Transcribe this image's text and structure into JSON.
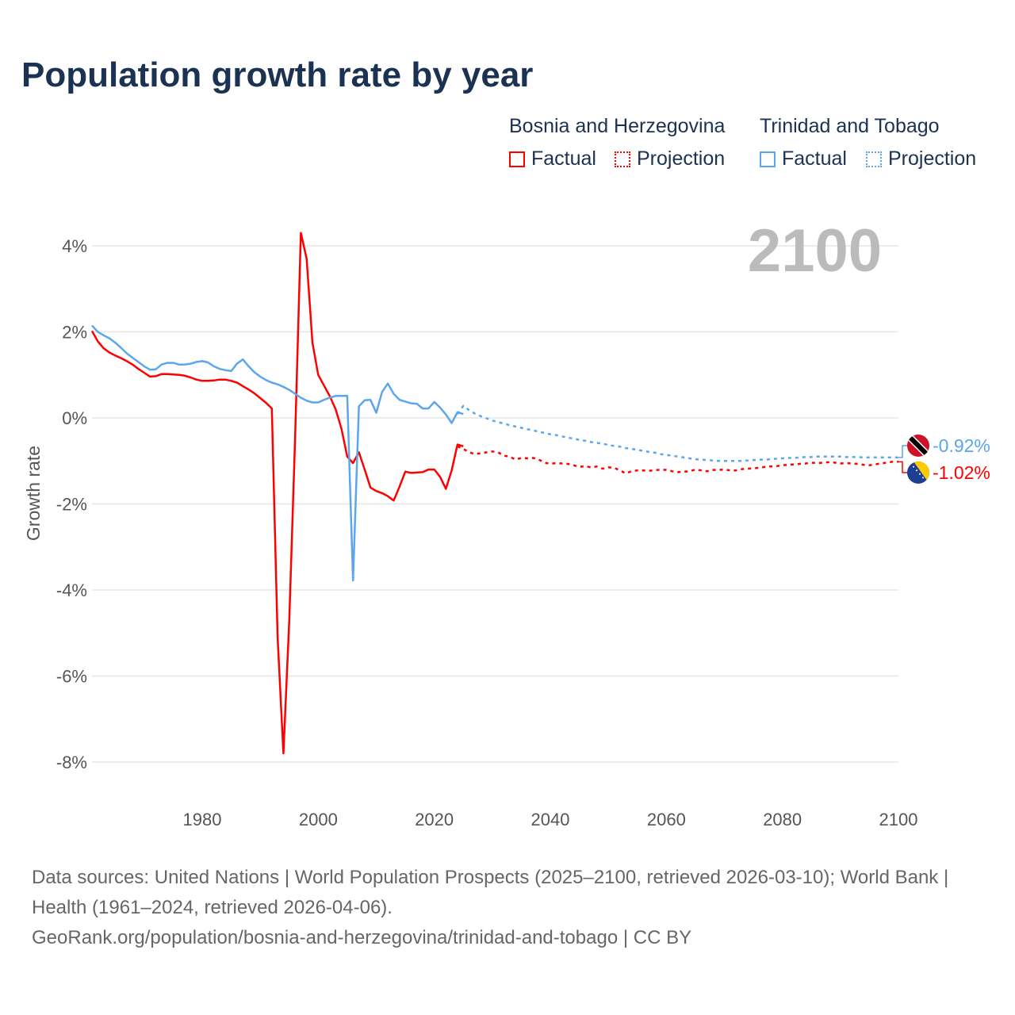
{
  "chart_data": {
    "type": "line",
    "title": "Population growth rate by year",
    "ylabel": "Growth rate",
    "xlim": [
      1961,
      2100
    ],
    "ylim": [
      -9,
      4.4
    ],
    "yticks": [
      4,
      2,
      0,
      -2,
      -4,
      -6,
      -8
    ],
    "ytick_labels": [
      "4%",
      "2%",
      "0%",
      "-2%",
      "-4%",
      "-6%",
      "-8%"
    ],
    "xticks": [
      1980,
      2000,
      2020,
      2040,
      2060,
      2080,
      2100
    ],
    "year_label": "2100",
    "legend": {
      "groups": [
        {
          "name": "Bosnia and Herzegovina",
          "items": [
            "Factual",
            "Projection"
          ]
        },
        {
          "name": "Trinidad and Tobago",
          "items": [
            "Factual",
            "Projection"
          ]
        }
      ],
      "position": "top-right"
    },
    "series": [
      {
        "name": "Bosnia and Herzegovina",
        "color": "#ff0000",
        "end_label": "-1.02%",
        "flag": "bosnia-flag",
        "factual": {
          "x_start": 1961,
          "values": [
            2.02,
            1.78,
            1.62,
            1.52,
            1.45,
            1.39,
            1.32,
            1.24,
            1.14,
            1.05,
            0.96,
            0.97,
            1.02,
            1.02,
            1.01,
            1.0,
            0.98,
            0.94,
            0.89,
            0.86,
            0.86,
            0.87,
            0.89,
            0.89,
            0.86,
            0.82,
            0.74,
            0.66,
            0.57,
            0.46,
            0.35,
            0.22,
            -5.1,
            -7.8,
            -4.7,
            -0.5,
            4.3,
            3.7,
            1.75,
            1.0,
            0.75,
            0.5,
            0.2,
            -0.25,
            -0.9,
            -1.05,
            -0.8,
            -1.2,
            -1.62,
            -1.7,
            -1.75,
            -1.82,
            -1.92,
            -1.6,
            -1.25,
            -1.28,
            -1.27,
            -1.26,
            -1.2,
            -1.2,
            -1.37,
            -1.65,
            -1.22,
            -0.62,
            -0.66
          ]
        },
        "projection": {
          "x_start": 2024,
          "values": [
            -0.66,
            -0.72,
            -0.8,
            -0.84,
            -0.82,
            -0.8,
            -0.78,
            -0.8,
            -0.88,
            -0.9,
            -0.97,
            -0.93,
            -0.94,
            -0.93,
            -0.97,
            -1.04,
            -1.07,
            -1.05,
            -1.06,
            -1.07,
            -1.1,
            -1.14,
            -1.12,
            -1.15,
            -1.13,
            -1.18,
            -1.15,
            -1.16,
            -1.22,
            -1.29,
            -1.24,
            -1.22,
            -1.22,
            -1.23,
            -1.22,
            -1.2,
            -1.21,
            -1.24,
            -1.26,
            -1.25,
            -1.24,
            -1.2,
            -1.22,
            -1.24,
            -1.21,
            -1.21,
            -1.2,
            -1.22,
            -1.22,
            -1.19,
            -1.18,
            -1.17,
            -1.16,
            -1.14,
            -1.13,
            -1.12,
            -1.1,
            -1.09,
            -1.08,
            -1.07,
            -1.06,
            -1.04,
            -1.05,
            -1.04,
            -1.03,
            -1.04,
            -1.06,
            -1.05,
            -1.06,
            -1.07,
            -1.09,
            -1.1,
            -1.08,
            -1.06,
            -1.04,
            -1.02,
            -1.02
          ]
        }
      },
      {
        "name": "Trinidad and Tobago",
        "color": "#5ba6ec",
        "end_label": "-0.92%",
        "flag": "trinidad-flag",
        "factual": {
          "x_start": 1961,
          "values": [
            2.15,
            2.0,
            1.92,
            1.85,
            1.75,
            1.63,
            1.5,
            1.4,
            1.3,
            1.2,
            1.12,
            1.13,
            1.24,
            1.28,
            1.28,
            1.24,
            1.24,
            1.26,
            1.3,
            1.32,
            1.29,
            1.2,
            1.14,
            1.11,
            1.09,
            1.26,
            1.36,
            1.2,
            1.06,
            0.96,
            0.88,
            0.82,
            0.78,
            0.72,
            0.65,
            0.56,
            0.47,
            0.4,
            0.36,
            0.36,
            0.42,
            0.47,
            0.51,
            0.51,
            0.51,
            -3.78,
            0.27,
            0.41,
            0.42,
            0.12,
            0.6,
            0.8,
            0.56,
            0.42,
            0.38,
            0.34,
            0.33,
            0.22,
            0.22,
            0.37,
            0.24,
            0.08,
            -0.12,
            0.13,
            0.09
          ]
        },
        "projection": {
          "x_start": 2024,
          "values": [
            0.09,
            0.28,
            0.18,
            0.1,
            0.04,
            -0.01,
            -0.06,
            -0.1,
            -0.13,
            -0.17,
            -0.2,
            -0.23,
            -0.26,
            -0.29,
            -0.32,
            -0.35,
            -0.38,
            -0.4,
            -0.43,
            -0.46,
            -0.48,
            -0.51,
            -0.53,
            -0.56,
            -0.58,
            -0.6,
            -0.63,
            -0.65,
            -0.67,
            -0.7,
            -0.72,
            -0.74,
            -0.77,
            -0.79,
            -0.81,
            -0.84,
            -0.86,
            -0.88,
            -0.9,
            -0.92,
            -0.94,
            -0.96,
            -0.97,
            -0.98,
            -0.99,
            -1.0,
            -1.0,
            -1.0,
            -1.0,
            -1.0,
            -0.99,
            -0.98,
            -0.97,
            -0.97,
            -0.96,
            -0.95,
            -0.94,
            -0.93,
            -0.93,
            -0.92,
            -0.91,
            -0.91,
            -0.9,
            -0.9,
            -0.9,
            -0.9,
            -0.9,
            -0.91,
            -0.91,
            -0.91,
            -0.92,
            -0.92,
            -0.92,
            -0.92,
            -0.92,
            -0.92,
            -0.92
          ]
        }
      }
    ]
  },
  "footer": {
    "line1": "Data sources: United Nations | World Population Prospects (2025–2100, retrieved 2026-03-10); World Bank | Health (1961–2024, retrieved 2026-04-06).",
    "line2": "GeoRank.org/population/bosnia-and-herzegovina/trinidad-and-tobago | CC BY"
  }
}
